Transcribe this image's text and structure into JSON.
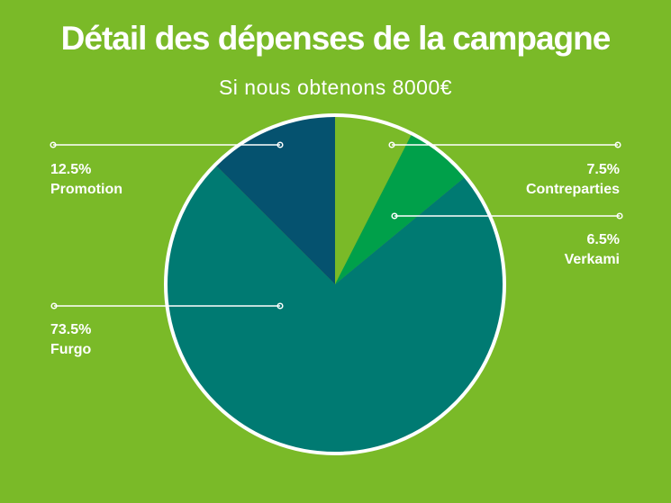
{
  "chart_data": {
    "type": "pie",
    "title": "Détail des dépenses de la campagne",
    "subtitle": "Si nous obtenons 8000€",
    "slices": [
      {
        "name": "Contreparties",
        "value": 7.5,
        "label": "7.5%",
        "color": "#7aba28"
      },
      {
        "name": "Verkami",
        "value": 6.5,
        "label": "6.5%",
        "color": "#00a04a"
      },
      {
        "name": "Furgo",
        "value": 73.5,
        "label": "73.5%",
        "color": "#007a72"
      },
      {
        "name": "Promotion",
        "value": 12.5,
        "label": "12.5%",
        "color": "#05526f"
      }
    ]
  }
}
